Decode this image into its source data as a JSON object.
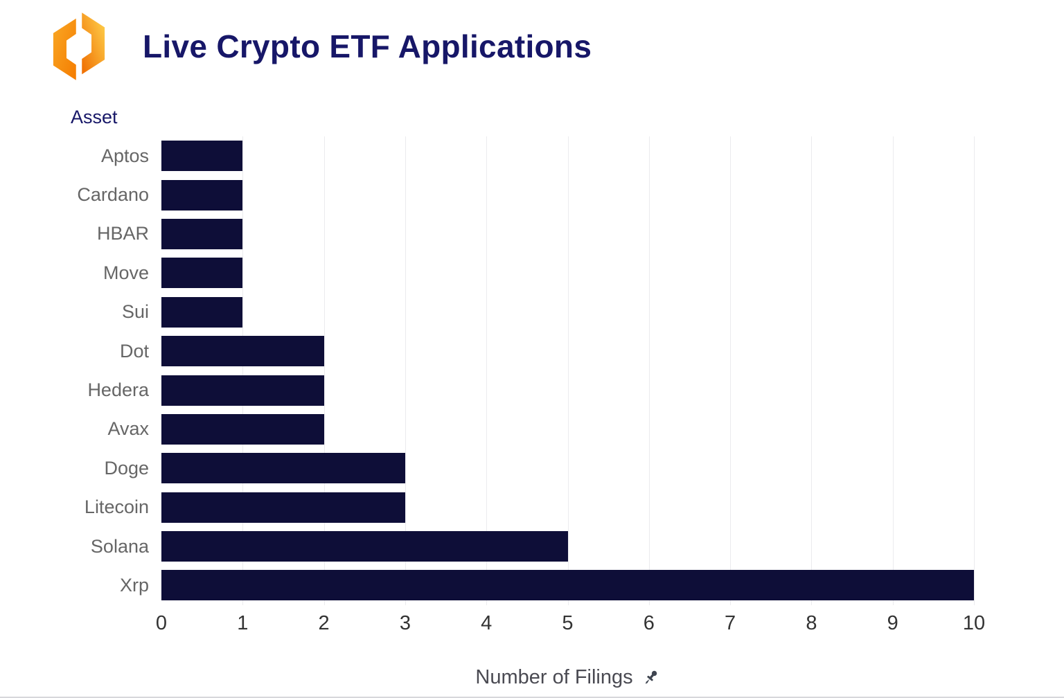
{
  "header": {
    "title": "Live Crypto ETF Applications",
    "logo_icon": "crypto-app-logo"
  },
  "colors": {
    "accent_navy": "#171768",
    "bar": "#0e0e38",
    "gridline": "#ebebee",
    "category_label": "#666666",
    "tick_label": "#333333",
    "axis_label": "#4a4a52",
    "logo_orange_light": "#ffd54f",
    "logo_orange_dark": "#ef6c00"
  },
  "icons": {
    "pushpin": "pushpin-icon",
    "logo": "app-logo-icon"
  },
  "chart_data": {
    "type": "bar",
    "orientation": "horizontal",
    "title": "Live Crypto ETF Applications",
    "ylabel": "Asset",
    "xlabel": "Number of Filings",
    "categories": [
      "Aptos",
      "Cardano",
      "HBAR",
      "Move",
      "Sui",
      "Dot",
      "Hedera",
      "Avax",
      "Doge",
      "Litecoin",
      "Solana",
      "Xrp"
    ],
    "values": [
      1,
      1,
      1,
      1,
      1,
      2,
      2,
      2,
      3,
      3,
      5,
      10
    ],
    "xlim": [
      0,
      10
    ],
    "xticks": [
      0,
      1,
      2,
      3,
      4,
      5,
      6,
      7,
      8,
      9,
      10
    ],
    "grid": true,
    "legend": "none"
  }
}
